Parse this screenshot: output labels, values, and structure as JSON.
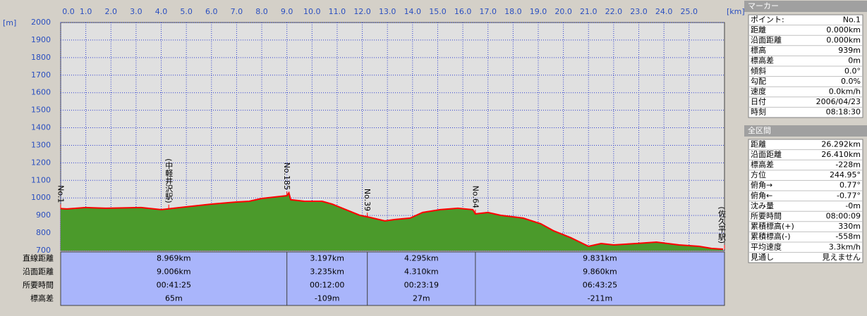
{
  "chart_data": {
    "type": "area",
    "x_label": "[km]",
    "y_label": "[m]",
    "x": [
      0,
      0.25,
      1.0,
      1.8,
      3.2,
      4.0,
      4.5,
      5.0,
      6.0,
      7.0,
      7.5,
      8.0,
      8.5,
      9.0,
      9.08,
      9.15,
      9.7,
      10.4,
      10.8,
      11.35,
      11.9,
      12.3,
      12.9,
      13.3,
      13.9,
      14.4,
      15.1,
      15.8,
      16.4,
      16.5,
      17.0,
      17.5,
      18.4,
      19.1,
      19.6,
      20.3,
      21.0,
      21.5,
      22.0,
      22.9,
      23.7,
      24.6,
      25.4,
      25.9,
      26.35
    ],
    "values": [
      939,
      937,
      945,
      941,
      945,
      933,
      941,
      949,
      965,
      977,
      981,
      997,
      1005,
      1013,
      1029,
      990,
      981,
      981,
      965,
      933,
      901,
      889,
      869,
      877,
      885,
      917,
      933,
      941,
      933,
      909,
      917,
      901,
      885,
      853,
      813,
      773,
      724,
      740,
      732,
      740,
      748,
      732,
      724,
      712,
      708
    ],
    "color": "#4b9a2b",
    "line_color": "#ff0000",
    "xlim": [
      0,
      26.41
    ],
    "ylim": [
      700,
      2000
    ],
    "xticks": [
      {
        "value": 0,
        "label": "0.0"
      },
      {
        "value": 1,
        "label": "1.0"
      },
      {
        "value": 2,
        "label": "2.0"
      },
      {
        "value": 3,
        "label": "3.0"
      },
      {
        "value": 4,
        "label": "4.0"
      },
      {
        "value": 5,
        "label": "5.0"
      },
      {
        "value": 6,
        "label": "6.0"
      },
      {
        "value": 7,
        "label": "7.0"
      },
      {
        "value": 8,
        "label": "8.0"
      },
      {
        "value": 9,
        "label": "9.0"
      },
      {
        "value": 10,
        "label": "10.0"
      },
      {
        "value": 11,
        "label": "11.0"
      },
      {
        "value": 12,
        "label": "12.0"
      },
      {
        "value": 13,
        "label": "13.0"
      },
      {
        "value": 14,
        "label": "14.0"
      },
      {
        "value": 15,
        "label": "15.0"
      },
      {
        "value": 16,
        "label": "16.0"
      },
      {
        "value": 17,
        "label": "17.0"
      },
      {
        "value": 18,
        "label": "18.0"
      },
      {
        "value": 19,
        "label": "19.0"
      },
      {
        "value": 20,
        "label": "20.0"
      },
      {
        "value": 21,
        "label": "21.0"
      },
      {
        "value": 22,
        "label": "22.0"
      },
      {
        "value": 23,
        "label": "23.0"
      },
      {
        "value": 24,
        "label": "24.0"
      },
      {
        "value": 25,
        "label": "25.0"
      }
    ],
    "yticks": [
      700,
      800,
      900,
      1000,
      1100,
      1200,
      1300,
      1400,
      1500,
      1600,
      1700,
      1800,
      1900,
      2000
    ],
    "grid": true,
    "annotations": [
      {
        "text": "No.1",
        "x": 0
      },
      {
        "text": "(中軽井沢駅)",
        "x": 4.3
      },
      {
        "text": "No.185",
        "x": 9.0
      },
      {
        "text": "No.39",
        "x": 12.2
      },
      {
        "text": "No.64",
        "x": 16.5
      },
      {
        "text": "(佐久平駅)",
        "x": 26.41
      }
    ]
  },
  "segments": {
    "row_labels": [
      "直線距離",
      "沿面距離",
      "所要時間",
      "標高差"
    ],
    "columns": [
      [
        "8.969km",
        "9.006km",
        "00:41:25",
        "65m"
      ],
      [
        "3.197km",
        "3.235km",
        "00:12:00",
        "-109m"
      ],
      [
        "4.295km",
        "4.310km",
        "00:23:19",
        "27m"
      ],
      [
        "9.831km",
        "9.860km",
        "06:43:25",
        "-211m"
      ]
    ]
  },
  "marker_panel": {
    "title": "マーカー",
    "rows": [
      [
        "ポイント:",
        "No.1"
      ],
      [
        "距離",
        "0.000km"
      ],
      [
        "沿面距離",
        "0.000km"
      ],
      [
        "標高",
        "939m"
      ],
      [
        "標高差",
        "0m"
      ],
      [
        "傾斜",
        "0.0°"
      ],
      [
        "勾配",
        "0.0%"
      ],
      [
        "速度",
        "0.0km/h"
      ],
      [
        "日付",
        "2006/04/23"
      ],
      [
        "時刻",
        "08:18:30"
      ]
    ]
  },
  "total_panel": {
    "title": "全区間",
    "rows": [
      [
        "距離",
        "26.292km"
      ],
      [
        "沿面距離",
        "26.410km"
      ],
      [
        "標高差",
        "-228m"
      ],
      [
        "方位",
        "244.95°"
      ],
      [
        "俯角→",
        "0.77°"
      ],
      [
        "俯角←",
        "-0.77°"
      ],
      [
        "沈み量",
        "-0m"
      ],
      [
        "所要時間",
        "08:00:09"
      ],
      [
        "累積標高(+)",
        "330m"
      ],
      [
        "累積標高(-)",
        "-558m"
      ],
      [
        "平均速度",
        "3.3km/h"
      ],
      [
        "見通し",
        "見えません"
      ]
    ]
  }
}
